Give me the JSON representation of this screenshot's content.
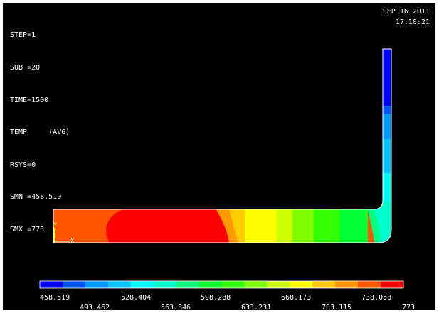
{
  "info": {
    "lines": [
      "STEP=1",
      "SUB =20",
      "TIME=1500",
      "TEMP     (AVG)",
      "RSYS=0",
      "SMN =458.519",
      "SMX =773"
    ]
  },
  "datetime": {
    "date": "SEP 16 2011",
    "time": "17:10:21"
  },
  "triad": {
    "y_label": "Y",
    "x_label": "X"
  },
  "legend": {
    "colors": [
      "#0000ff",
      "#0055ff",
      "#0099ff",
      "#00c8ff",
      "#00ffff",
      "#00ffcc",
      "#00ff80",
      "#00ff33",
      "#33ff00",
      "#80ff00",
      "#ccff00",
      "#ffff00",
      "#ffcc00",
      "#ff9900",
      "#ff5500",
      "#ff0000"
    ],
    "labels_top": [
      "458.519",
      "528.404",
      "598.288",
      "668.173",
      "738.058"
    ],
    "labels_bottom": [
      "493.462",
      "563.346",
      "633.231",
      "703.115",
      "773"
    ]
  },
  "model": {
    "outline_color": "#ffffff",
    "colors": {
      "orange_red": "#ff5500",
      "red": "#ff0000",
      "orange": "#ff9900",
      "yellow_orange": "#ffcc00",
      "yellow": "#ffff00",
      "yellow_green": "#ccff00",
      "lime": "#80ff00",
      "green": "#33ff00",
      "green2": "#00ff33",
      "teal_green": "#00ff80",
      "aqua_green": "#00ffcc",
      "cyan": "#00ffff",
      "sky": "#00c8ff",
      "light_blue": "#0099ff",
      "mid_blue": "#0055ff",
      "blue": "#0000ff"
    }
  }
}
